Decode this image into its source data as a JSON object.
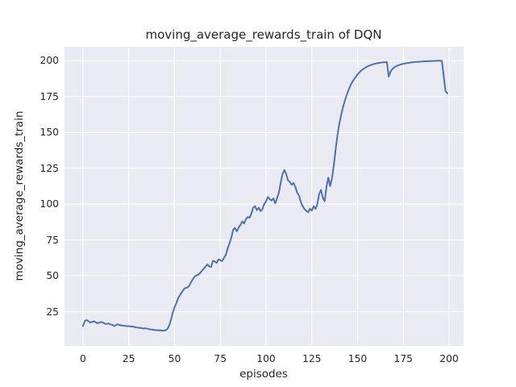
{
  "chart_data": {
    "type": "line",
    "title": "moving_average_rewards_train of DQN",
    "xlabel": "episodes",
    "ylabel": "moving_average_rewards_train",
    "xlim": [
      -10.1,
      207.9
    ],
    "ylim": [
      1.1,
      209.8
    ],
    "xticks": [
      0,
      25,
      50,
      75,
      100,
      125,
      150,
      175,
      200
    ],
    "yticks": [
      25,
      50,
      75,
      100,
      125,
      150,
      175,
      200
    ],
    "grid": true,
    "legend": false,
    "style": "seaborn-darkgrid",
    "colors": {
      "line": "#4c72b0",
      "plot_background": "#eaeaf2",
      "gridline": "#ffffff",
      "text": "#262626",
      "figure_background": "#ffffff"
    },
    "series": [
      {
        "name": "moving_average_rewards_train",
        "x_start": 0,
        "x_step": 1,
        "y": [
          15.0,
          18.5,
          19.2,
          18.3,
          17.4,
          17.8,
          18.3,
          17.5,
          16.9,
          17.4,
          17.8,
          17.2,
          16.6,
          16.4,
          16.7,
          16.1,
          15.8,
          14.9,
          15.7,
          16.1,
          15.6,
          15.4,
          15.2,
          15.0,
          14.9,
          14.9,
          14.7,
          14.6,
          14.4,
          14.0,
          13.8,
          13.7,
          13.5,
          13.2,
          13.4,
          13.1,
          12.8,
          12.6,
          12.4,
          12.2,
          12.1,
          12.0,
          11.9,
          11.8,
          11.8,
          11.9,
          12.8,
          15.0,
          19.0,
          24.0,
          28.0,
          31.0,
          34.5,
          36.5,
          38.5,
          40.5,
          41.5,
          41.8,
          43.0,
          45.5,
          47.5,
          49.5,
          50.3,
          50.8,
          52.0,
          53.5,
          55.0,
          56.5,
          58.0,
          56.5,
          56.2,
          60.5,
          60.0,
          59.0,
          61.5,
          61.0,
          60.2,
          62.5,
          64.5,
          69.0,
          72.5,
          76.5,
          82.0,
          83.5,
          81.0,
          83.5,
          85.5,
          88.0,
          86.5,
          89.5,
          91.0,
          90.5,
          93.5,
          97.8,
          98.5,
          95.8,
          97.5,
          95.2,
          96.5,
          100.0,
          102.0,
          105.0,
          103.5,
          102.5,
          104.0,
          100.5,
          104.0,
          108.0,
          115.0,
          121.0,
          123.8,
          121.0,
          116.5,
          115.5,
          113.5,
          114.8,
          112.0,
          108.0,
          106.0,
          101.5,
          98.5,
          96.5,
          95.3,
          94.4,
          96.8,
          95.5,
          98.5,
          96.6,
          100.0,
          107.0,
          110.0,
          104.5,
          102.0,
          112.0,
          118.5,
          112.5,
          118.0,
          127.0,
          138.0,
          148.0,
          156.0,
          162.0,
          167.5,
          172.0,
          176.0,
          179.5,
          182.5,
          185.0,
          187.0,
          188.8,
          190.5,
          192.0,
          193.2,
          194.2,
          195.0,
          195.8,
          196.4,
          196.9,
          197.4,
          197.8,
          198.1,
          198.4,
          198.6,
          198.8,
          199.0,
          199.0,
          199.2,
          189.0,
          192.5,
          194.3,
          195.4,
          196.2,
          196.8,
          197.2,
          197.6,
          197.9,
          198.2,
          198.4,
          198.6,
          198.8,
          199.0,
          199.1,
          199.2,
          199.3,
          199.4,
          199.5,
          199.6,
          199.7,
          199.7,
          199.8,
          199.8,
          199.9,
          199.9,
          200.0,
          200.0,
          200.0,
          200.0,
          190.0,
          179.0,
          177.3
        ]
      }
    ]
  }
}
